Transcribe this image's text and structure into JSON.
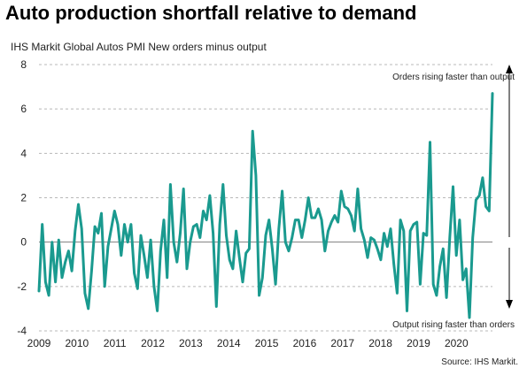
{
  "title": "Auto production shortfall relative to demand",
  "source": "Source: IHS Markit.",
  "chart_data": {
    "type": "line",
    "subtitle": "IHS Markit Global Autos PMI New orders minus output",
    "ylim": [
      -4,
      8
    ],
    "yticks": [
      -4,
      -2,
      0,
      2,
      4,
      6,
      8
    ],
    "xlim": [
      2009.0,
      2020.95
    ],
    "xticks": [
      "2009",
      "2010",
      "2011",
      "2012",
      "2013",
      "2014",
      "2015",
      "2016",
      "2017",
      "2018",
      "2019",
      "2020"
    ],
    "grid": "horizontal dashed",
    "color": "#1a9a8f",
    "annotations": {
      "top": "Orders rising faster than output",
      "bottom": "Output rising faster than orders"
    },
    "series": [
      {
        "values": [
          -2.2,
          0.8,
          -1.8,
          -2.4,
          0.0,
          -1.8,
          0.1,
          -1.6,
          -0.9,
          -0.4,
          -1.3,
          0.5,
          1.7,
          0.6,
          -2.3,
          -3.0,
          -1.3,
          0.7,
          0.4,
          1.3,
          -2.0,
          -0.2,
          0.6,
          1.4,
          0.8,
          -0.6,
          0.8,
          0.0,
          0.8,
          -1.4,
          -2.1,
          0.3,
          -0.6,
          -1.6,
          0.1,
          -2.0,
          -3.1,
          -0.4,
          1.0,
          -1.6,
          2.6,
          0.0,
          -0.9,
          0.4,
          2.4,
          -1.2,
          0.0,
          0.7,
          0.8,
          0.2,
          1.4,
          1.0,
          2.1,
          0.4,
          -2.9,
          0.8,
          2.6,
          0.3,
          -0.8,
          -1.2,
          0.5,
          -0.7,
          -1.8,
          -0.5,
          -0.3,
          5.0,
          3.0,
          -2.4,
          -1.6,
          0.3,
          1.0,
          -0.3,
          -1.9,
          0.6,
          2.3,
          0.0,
          -0.4,
          0.2,
          1.0,
          1.0,
          0.2,
          1.0,
          2.0,
          1.1,
          1.1,
          1.5,
          1.0,
          -0.4,
          0.5,
          0.9,
          1.2,
          0.9,
          2.3,
          1.6,
          1.5,
          1.2,
          0.5,
          2.4,
          0.6,
          0.1,
          -0.7,
          0.2,
          0.1,
          -0.3,
          -0.8,
          0.4,
          -0.2,
          0.6,
          -1.0,
          -2.3,
          1.0,
          0.5,
          -3.1,
          0.5,
          0.8,
          0.9,
          -1.9,
          0.4,
          0.3,
          4.5,
          -1.9,
          -2.4,
          -1.1,
          -0.3,
          -2.5,
          0.2,
          2.5,
          -0.6,
          1.0,
          -1.7,
          -1.2,
          -3.4,
          0.2,
          1.9,
          2.1,
          2.9,
          1.6,
          1.4,
          6.7
        ]
      }
    ]
  }
}
